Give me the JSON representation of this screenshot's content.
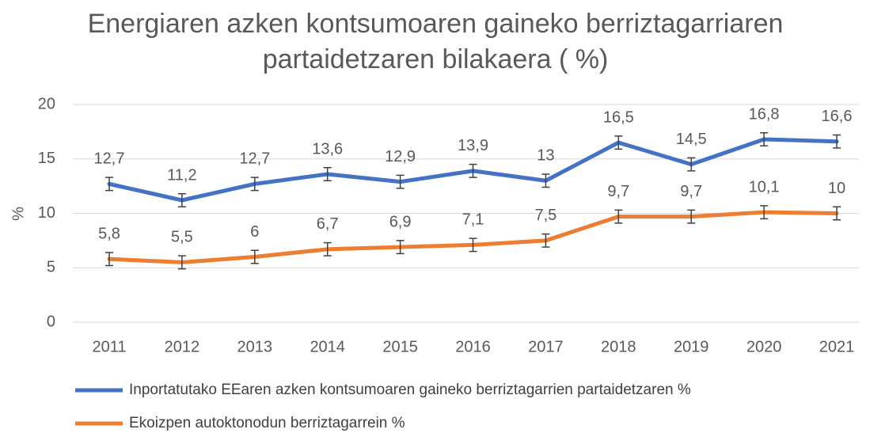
{
  "chart_data": {
    "type": "line",
    "title": "Energiaren azken kontsumoaren gaineko berriztagarriaren",
    "subtitle": "partaidetzaren bilakaera ( %)",
    "y_label": "%",
    "categories": [
      "2011",
      "2012",
      "2013",
      "2014",
      "2015",
      "2016",
      "2017",
      "2018",
      "2019",
      "2020",
      "2021"
    ],
    "series": [
      {
        "name": "Inportatutako EEaren azken kontsumoaren gaineko berriztagarrien partaidetzaren %",
        "color": "#4472c4",
        "values": [
          12.7,
          11.2,
          12.7,
          13.6,
          12.9,
          13.9,
          13,
          16.5,
          14.5,
          16.8,
          16.6
        ],
        "value_labels": [
          "12,7",
          "11,2",
          "12,7",
          "13,6",
          "12,9",
          "13,9",
          "13",
          "16,5",
          "14,5",
          "16,8",
          "16,6"
        ],
        "error": 0.6
      },
      {
        "name": "Ekoizpen autoktonodun berriztagarrein %",
        "color": "#ed7d31",
        "values": [
          5.8,
          5.5,
          6,
          6.7,
          6.9,
          7.1,
          7.5,
          9.7,
          9.7,
          10.1,
          10
        ],
        "value_labels": [
          "5,8",
          "5,5",
          "6",
          "6,7",
          "6,9",
          "7,1",
          "7,5",
          "9,7",
          "9,7",
          "10,1",
          "10"
        ],
        "error": 0.6
      }
    ],
    "ylim": [
      0,
      20
    ],
    "yticks": [
      0,
      5,
      10,
      15,
      20
    ],
    "grid": true,
    "legend": "bottom"
  }
}
